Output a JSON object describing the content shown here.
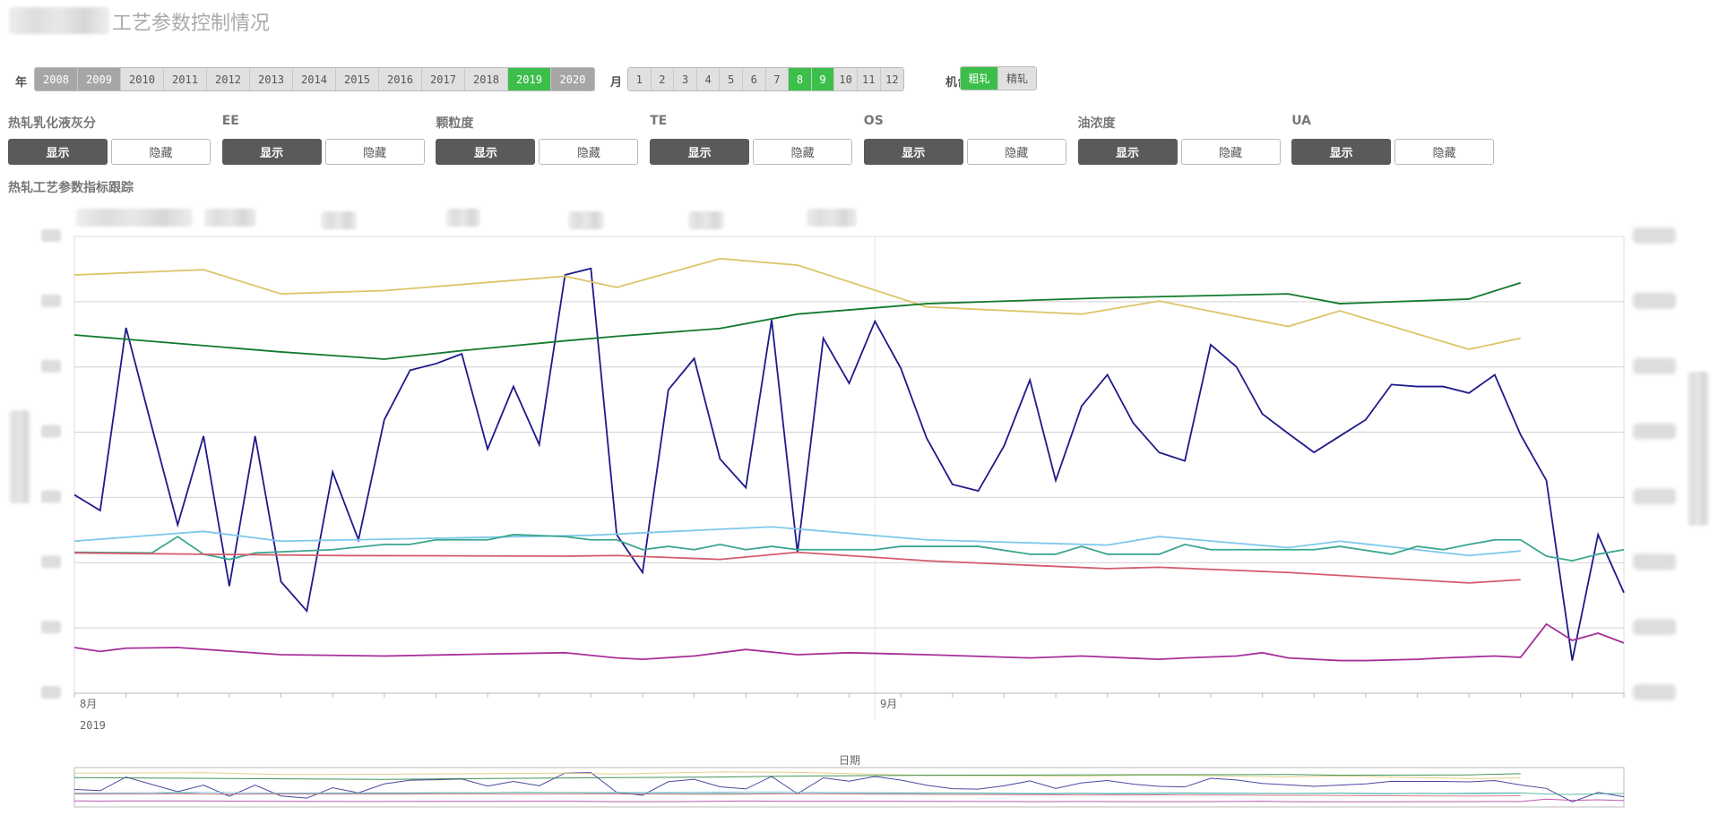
{
  "header": {
    "title": "工艺参数控制情况"
  },
  "filters": {
    "year_label": "年",
    "years": [
      {
        "label": "2008",
        "state": "possible"
      },
      {
        "label": "2009",
        "state": "possible"
      },
      {
        "label": "2010",
        "state": "off"
      },
      {
        "label": "2011",
        "state": "off"
      },
      {
        "label": "2012",
        "state": "off"
      },
      {
        "label": "2013",
        "state": "off"
      },
      {
        "label": "2014",
        "state": "off"
      },
      {
        "label": "2015",
        "state": "off"
      },
      {
        "label": "2016",
        "state": "off"
      },
      {
        "label": "2017",
        "state": "off"
      },
      {
        "label": "2018",
        "state": "off"
      },
      {
        "label": "2019",
        "state": "selected"
      },
      {
        "label": "2020",
        "state": "possible"
      }
    ],
    "month_label": "月",
    "months": [
      {
        "label": "1",
        "state": "off"
      },
      {
        "label": "2",
        "state": "off"
      },
      {
        "label": "3",
        "state": "off"
      },
      {
        "label": "4",
        "state": "off"
      },
      {
        "label": "5",
        "state": "off"
      },
      {
        "label": "6",
        "state": "off"
      },
      {
        "label": "7",
        "state": "off"
      },
      {
        "label": "8",
        "state": "selected"
      },
      {
        "label": "9",
        "state": "selected"
      },
      {
        "label": "10",
        "state": "off"
      },
      {
        "label": "11",
        "state": "off"
      },
      {
        "label": "12",
        "state": "off"
      }
    ],
    "machine_label": "机台",
    "machines": [
      {
        "label": "粗轧",
        "state": "selected"
      },
      {
        "label": "精轧",
        "state": "off"
      }
    ]
  },
  "params": [
    {
      "label": "热轧乳化液灰分",
      "show": "显示",
      "hide": "隐藏"
    },
    {
      "label": "EE",
      "show": "显示",
      "hide": "隐藏"
    },
    {
      "label": "颗粒度",
      "show": "显示",
      "hide": "隐藏"
    },
    {
      "label": "TE",
      "show": "显示",
      "hide": "隐藏"
    },
    {
      "label": "OS",
      "show": "显示",
      "hide": "隐藏"
    },
    {
      "label": "油浓度",
      "show": "显示",
      "hide": "隐藏"
    },
    {
      "label": "UA",
      "show": "显示",
      "hide": "隐藏"
    }
  ],
  "section_title": "热轧工艺参数指标跟踪",
  "colors": {
    "selected": "#3cbf4a",
    "possible": "#a6a6a6",
    "off": "#e0e0e0",
    "show_button": "#5a5a5a"
  },
  "chart_data": {
    "type": "line",
    "x_tick_labels": [
      "8月",
      "9月"
    ],
    "x_year_label": "2019",
    "navigator_label": "日期",
    "xlim": [
      "2019-08-01",
      "2019-09-30"
    ],
    "ylim": [
      0,
      7
    ],
    "grid": true,
    "legend": "top",
    "series": [
      {
        "color": "#1f1a8a",
        "start": "2019-08-01",
        "values": [
          3.04,
          2.8,
          5.6,
          4.08,
          2.58,
          3.94,
          1.64,
          3.94,
          1.71,
          1.26,
          3.39,
          2.35,
          4.19,
          4.95,
          5.05,
          5.2,
          3.74,
          4.7,
          3.81,
          6.41,
          6.51,
          2.43,
          1.85,
          4.65,
          5.13,
          3.59,
          3.15,
          5.72,
          2.15,
          5.44,
          4.75,
          5.7,
          4.98,
          3.91,
          3.2,
          3.1,
          3.79,
          4.8,
          3.26,
          4.4,
          4.88,
          4.14,
          3.69,
          3.56,
          5.34,
          5.0,
          4.28,
          3.98,
          3.69,
          3.94,
          4.19,
          4.73,
          4.7,
          4.7,
          4.6,
          4.88,
          3.96,
          3.26,
          0.5,
          2.43,
          1.54
        ]
      },
      {
        "color": "#dcc46a",
        "points": [
          [
            "2019-08-01",
            6.41
          ],
          [
            "2019-08-06",
            6.49
          ],
          [
            "2019-08-09",
            6.12
          ],
          [
            "2019-08-13",
            6.17
          ],
          [
            "2019-08-20",
            6.39
          ],
          [
            "2019-08-22",
            6.22
          ],
          [
            "2019-08-26",
            6.66
          ],
          [
            "2019-08-29",
            6.56
          ],
          [
            "2019-09-03",
            5.92
          ],
          [
            "2019-09-09",
            5.81
          ],
          [
            "2019-09-12",
            6.01
          ],
          [
            "2019-09-17",
            5.62
          ],
          [
            "2019-09-19",
            5.86
          ],
          [
            "2019-09-24",
            5.27
          ],
          [
            "2019-09-26",
            5.44
          ]
        ]
      },
      {
        "color": "#137a2c",
        "points": [
          [
            "2019-08-01",
            5.49
          ],
          [
            "2019-08-09",
            5.23
          ],
          [
            "2019-08-13",
            5.12
          ],
          [
            "2019-08-16",
            5.25
          ],
          [
            "2019-08-20",
            5.4
          ],
          [
            "2019-08-22",
            5.47
          ],
          [
            "2019-08-26",
            5.59
          ],
          [
            "2019-08-29",
            5.81
          ],
          [
            "2019-09-03",
            5.97
          ],
          [
            "2019-09-10",
            6.06
          ],
          [
            "2019-09-17",
            6.12
          ],
          [
            "2019-09-19",
            5.97
          ],
          [
            "2019-09-24",
            6.04
          ],
          [
            "2019-09-26",
            6.29
          ]
        ]
      },
      {
        "color": "#7ec8ea",
        "points": [
          [
            "2019-08-01",
            2.33
          ],
          [
            "2019-08-06",
            2.48
          ],
          [
            "2019-08-09",
            2.33
          ],
          [
            "2019-08-21",
            2.42
          ],
          [
            "2019-08-28",
            2.55
          ],
          [
            "2019-09-03",
            2.35
          ],
          [
            "2019-09-10",
            2.27
          ],
          [
            "2019-09-12",
            2.4
          ],
          [
            "2019-09-17",
            2.23
          ],
          [
            "2019-09-19",
            2.33
          ],
          [
            "2019-09-24",
            2.11
          ],
          [
            "2019-09-26",
            2.18
          ]
        ]
      },
      {
        "color": "#3aa68f",
        "points": [
          [
            "2019-08-01",
            2.16
          ],
          [
            "2019-08-04",
            2.15
          ],
          [
            "2019-08-05",
            2.4
          ],
          [
            "2019-08-06",
            2.13
          ],
          [
            "2019-08-07",
            2.05
          ],
          [
            "2019-08-08",
            2.15
          ],
          [
            "2019-08-11",
            2.2
          ],
          [
            "2019-08-13",
            2.28
          ],
          [
            "2019-08-14",
            2.28
          ],
          [
            "2019-08-15",
            2.35
          ],
          [
            "2019-08-17",
            2.35
          ],
          [
            "2019-08-18",
            2.43
          ],
          [
            "2019-08-20",
            2.4
          ],
          [
            "2019-08-21",
            2.35
          ],
          [
            "2019-08-22",
            2.35
          ],
          [
            "2019-08-23",
            2.2
          ],
          [
            "2019-08-24",
            2.25
          ],
          [
            "2019-08-25",
            2.2
          ],
          [
            "2019-08-26",
            2.28
          ],
          [
            "2019-08-27",
            2.2
          ],
          [
            "2019-08-28",
            2.25
          ],
          [
            "2019-08-29",
            2.2
          ],
          [
            "2019-09-01",
            2.2
          ],
          [
            "2019-09-02",
            2.25
          ],
          [
            "2019-09-05",
            2.25
          ],
          [
            "2019-09-07",
            2.13
          ],
          [
            "2019-09-08",
            2.13
          ],
          [
            "2019-09-09",
            2.25
          ],
          [
            "2019-09-10",
            2.13
          ],
          [
            "2019-09-12",
            2.13
          ],
          [
            "2019-09-13",
            2.28
          ],
          [
            "2019-09-14",
            2.2
          ],
          [
            "2019-09-18",
            2.2
          ],
          [
            "2019-09-19",
            2.25
          ],
          [
            "2019-09-21",
            2.13
          ],
          [
            "2019-09-22",
            2.25
          ],
          [
            "2019-09-23",
            2.2
          ],
          [
            "2019-09-24",
            2.28
          ],
          [
            "2019-09-25",
            2.35
          ],
          [
            "2019-09-26",
            2.35
          ],
          [
            "2019-09-27",
            2.1
          ],
          [
            "2019-09-28",
            2.03
          ],
          [
            "2019-09-29",
            2.13
          ],
          [
            "2019-09-30",
            2.2
          ]
        ]
      },
      {
        "color": "#d45c6e",
        "points": [
          [
            "2019-08-01",
            2.15
          ],
          [
            "2019-08-11",
            2.11
          ],
          [
            "2019-08-20",
            2.1
          ],
          [
            "2019-08-22",
            2.11
          ],
          [
            "2019-08-26",
            2.05
          ],
          [
            "2019-08-29",
            2.16
          ],
          [
            "2019-09-03",
            2.03
          ],
          [
            "2019-09-07",
            1.96
          ],
          [
            "2019-09-10",
            1.91
          ],
          [
            "2019-09-12",
            1.93
          ],
          [
            "2019-09-17",
            1.85
          ],
          [
            "2019-09-24",
            1.69
          ],
          [
            "2019-09-26",
            1.74
          ]
        ]
      },
      {
        "color": "#a8309a",
        "points": [
          [
            "2019-08-01",
            0.7
          ],
          [
            "2019-08-02",
            0.64
          ],
          [
            "2019-08-03",
            0.69
          ],
          [
            "2019-08-05",
            0.7
          ],
          [
            "2019-08-09",
            0.59
          ],
          [
            "2019-08-13",
            0.57
          ],
          [
            "2019-08-17",
            0.6
          ],
          [
            "2019-08-20",
            0.62
          ],
          [
            "2019-08-22",
            0.54
          ],
          [
            "2019-08-23",
            0.52
          ],
          [
            "2019-08-25",
            0.57
          ],
          [
            "2019-08-27",
            0.67
          ],
          [
            "2019-08-29",
            0.59
          ],
          [
            "2019-08-31",
            0.62
          ],
          [
            "2019-09-03",
            0.59
          ],
          [
            "2019-09-07",
            0.54
          ],
          [
            "2019-09-09",
            0.57
          ],
          [
            "2019-09-12",
            0.52
          ],
          [
            "2019-09-13",
            0.54
          ],
          [
            "2019-09-15",
            0.57
          ],
          [
            "2019-09-16",
            0.62
          ],
          [
            "2019-09-17",
            0.54
          ],
          [
            "2019-09-19",
            0.5
          ],
          [
            "2019-09-20",
            0.5
          ],
          [
            "2019-09-22",
            0.52
          ],
          [
            "2019-09-23",
            0.54
          ],
          [
            "2019-09-25",
            0.57
          ],
          [
            "2019-09-26",
            0.55
          ],
          [
            "2019-09-27",
            1.06
          ],
          [
            "2019-09-28",
            0.81
          ],
          [
            "2019-09-29",
            0.92
          ],
          [
            "2019-09-30",
            0.77
          ]
        ]
      }
    ]
  }
}
